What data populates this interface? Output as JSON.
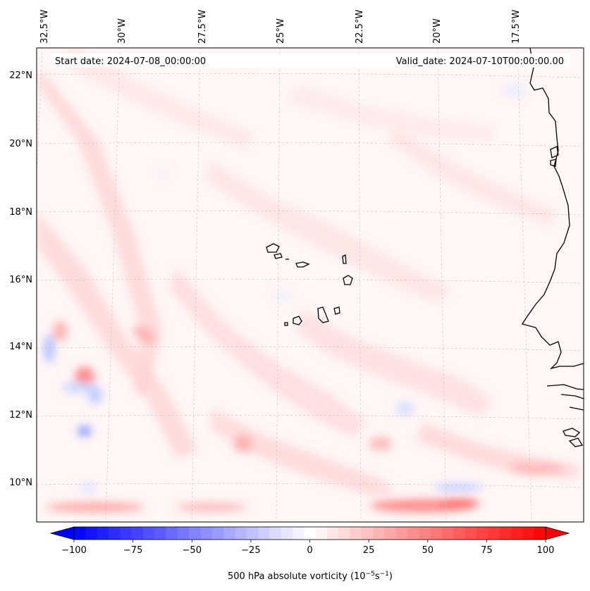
{
  "map": {
    "start_date": "Start date: 2024-07-08_00:00:00",
    "valid_date": "Valid_date: 2024-07-10T00:00:00.00",
    "lon_labels": [
      "32.5°W",
      "30°W",
      "27.5°W",
      "25°W",
      "22.5°W",
      "20°W",
      "17.5°W"
    ],
    "lat_labels": [
      "22°N",
      "20°N",
      "18°N",
      "16°N",
      "14°N",
      "12°N",
      "10°N"
    ],
    "colors": {
      "coastline": "#000000",
      "gridline": "#b0b0b0",
      "positive": "#ff0000",
      "negative": "#0000ff",
      "neutral": "#ffffff"
    }
  },
  "colorbar": {
    "ticks": [
      "−100",
      "−75",
      "−50",
      "−25",
      "0",
      "25",
      "50",
      "75",
      "100"
    ],
    "tick_values": [
      -100,
      -75,
      -50,
      -25,
      0,
      25,
      50,
      75,
      100
    ],
    "range": [
      -100,
      100
    ],
    "label_main": "500 hPa absolute vorticity (10",
    "label_exp1": "−5",
    "label_mid": "s",
    "label_exp2": "−1",
    "label_end": ")"
  }
}
